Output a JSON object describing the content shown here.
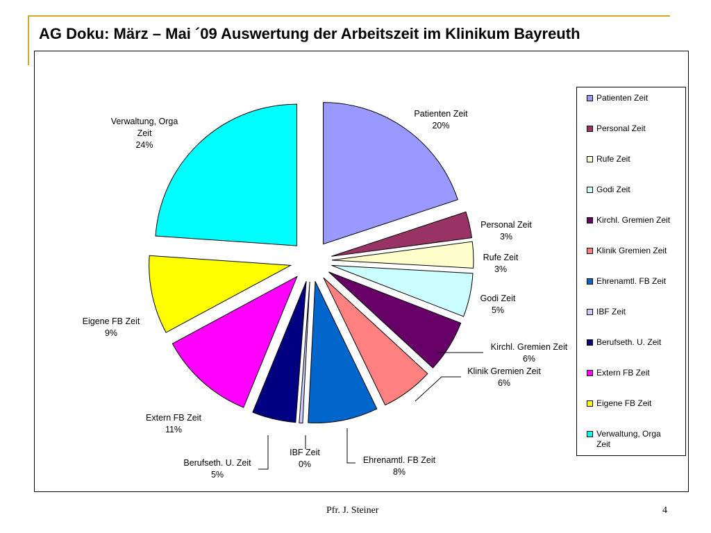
{
  "slide": {
    "title": "AG Doku:  März – Mai ´09 Auswertung der Arbeitszeit im Klinikum Bayreuth",
    "author": "Pfr. J. Steiner",
    "page_number": "4",
    "accent_color": "#d4a62a"
  },
  "chart_data": {
    "type": "pie",
    "title": "",
    "legend_position": "right",
    "series": [
      {
        "name": "Patienten Zeit",
        "value": 20,
        "label_lines": [
          "Patienten Zeit",
          "20%"
        ],
        "color": "#9999ff"
      },
      {
        "name": "Personal Zeit",
        "value": 3,
        "label_lines": [
          "Personal Zeit",
          "3%"
        ],
        "color": "#993366"
      },
      {
        "name": "Rufe Zeit",
        "value": 3,
        "label_lines": [
          "Rufe Zeit",
          "3%"
        ],
        "color": "#ffffcc"
      },
      {
        "name": "Godi Zeit",
        "value": 5,
        "label_lines": [
          "Godi Zeit",
          "5%"
        ],
        "color": "#ccffff"
      },
      {
        "name": "Kirchl. Gremien Zeit",
        "value": 6,
        "label_lines": [
          "Kirchl. Gremien Zeit",
          "6%"
        ],
        "color": "#660066"
      },
      {
        "name": "Klinik Gremien Zeit",
        "value": 6,
        "label_lines": [
          "Klinik Gremien Zeit",
          "6%"
        ],
        "color": "#ff8080"
      },
      {
        "name": "Ehrenamtl. FB Zeit",
        "value": 8,
        "label_lines": [
          "Ehrenamtl. FB Zeit",
          "8%"
        ],
        "color": "#0066cc"
      },
      {
        "name": "IBF Zeit",
        "value": 0.4,
        "label_lines": [
          "IBF Zeit",
          "0%"
        ],
        "color": "#ccccff"
      },
      {
        "name": "Berufseth. U. Zeit",
        "value": 5,
        "label_lines": [
          "Berufseth. U. Zeit",
          "5%"
        ],
        "color": "#000080"
      },
      {
        "name": "Extern FB Zeit",
        "value": 11,
        "label_lines": [
          "Extern FB Zeit",
          "11%"
        ],
        "color": "#ff00ff"
      },
      {
        "name": "Eigene FB Zeit",
        "value": 9,
        "label_lines": [
          "Eigene FB Zeit",
          "9%"
        ],
        "color": "#ffff00"
      },
      {
        "name": "Verwaltung, Orga Zeit",
        "value": 24,
        "label_lines": [
          "Verwaltung, Orga",
          "Zeit",
          "24%"
        ],
        "color": "#00ffff"
      }
    ]
  }
}
